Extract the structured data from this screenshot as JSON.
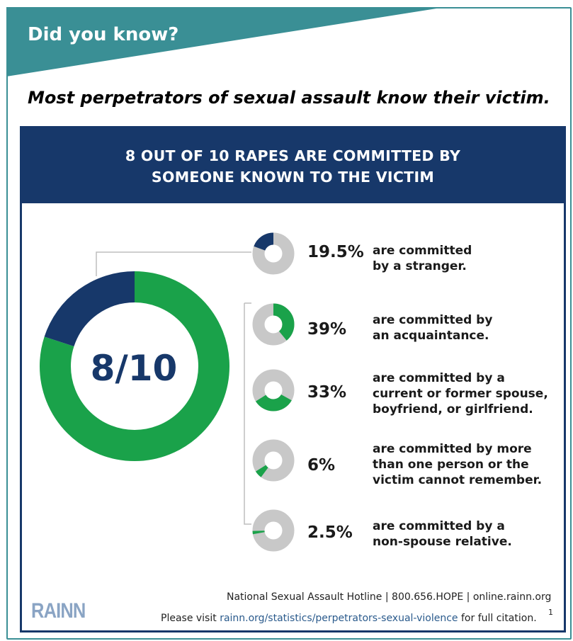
{
  "banner": {
    "title": "Did you know?",
    "color": "#3a8f95"
  },
  "subtitle": "Most perpetrators of sexual assault know their victim.",
  "chart_data": {
    "type": "pie",
    "title_line1": "8 OUT OF 10 RAPES ARE COMMITTED BY",
    "title_line2": "SOMEONE KNOWN TO THE VICTIM",
    "main": {
      "label": "8/10",
      "known_fraction": 0.8,
      "colors": {
        "known": "#1aa24a",
        "stranger": "#17386a"
      }
    },
    "items": [
      {
        "value": 19.5,
        "label": "19.5%",
        "desc": [
          "are committed",
          "by a stranger."
        ],
        "color": "#17386a"
      },
      {
        "value": 39,
        "label": "39%",
        "desc": [
          "are committed by",
          "an acquaintance."
        ],
        "color": "#1aa24a"
      },
      {
        "value": 33,
        "label": "33%",
        "desc": [
          "are committed by a",
          "current or former spouse,",
          "boyfriend, or girlfriend."
        ],
        "color": "#1aa24a"
      },
      {
        "value": 6,
        "label": "6%",
        "desc": [
          "are committed by more",
          "than one person or the",
          "victim cannot remember."
        ],
        "color": "#1aa24a"
      },
      {
        "value": 2.5,
        "label": "2.5%",
        "desc": [
          "are committed by a",
          "non-spouse relative."
        ],
        "color": "#1aa24a"
      }
    ],
    "track_color": "#c8c8c8"
  },
  "footer": {
    "hotline": "National Sexual Assault Hotline | 800.656.HOPE | online.rainn.org",
    "visit_prefix": "Please visit ",
    "visit_url": "rainn.org/statistics/perpetrators-sexual-violence",
    "visit_suffix": " for full citation.",
    "superscript": "1",
    "logo": "RAINN"
  }
}
